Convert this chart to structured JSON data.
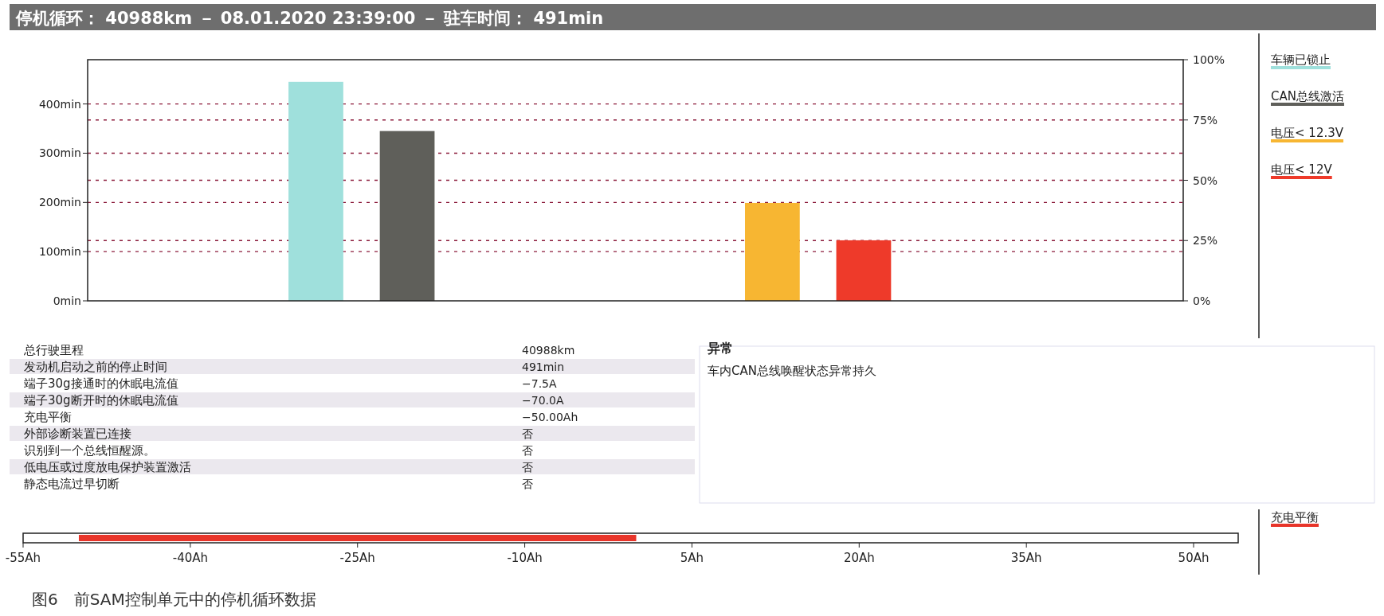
{
  "chart_data": [
    {
      "type": "bar",
      "title": "停机循环： 40988km － 08.01.2020 23:39:00 － 驻车时间： 491min",
      "categories": [
        null,
        null,
        null,
        null,
        null,
        null,
        null,
        null,
        null,
        null,
        null,
        null
      ],
      "series": [
        {
          "name": "车辆已锁止",
          "color": "#9fe0dc",
          "values": [
            null,
            null,
            445,
            null,
            null,
            null,
            null,
            null,
            null,
            null,
            null,
            null
          ]
        },
        {
          "name": "CAN总线激活",
          "color": "#5f5f5a",
          "values": [
            null,
            null,
            null,
            345,
            null,
            null,
            null,
            null,
            null,
            null,
            null,
            null
          ]
        },
        {
          "name": "电压< 12.3V",
          "color": "#f7b632",
          "values": [
            null,
            null,
            null,
            null,
            null,
            null,
            null,
            199,
            null,
            null,
            null,
            null
          ]
        },
        {
          "name": "电压< 12V",
          "color": "#ee3a2a",
          "values": [
            null,
            null,
            null,
            null,
            null,
            null,
            null,
            null,
            123,
            null,
            null,
            null
          ]
        }
      ],
      "ylim": [
        0,
        490
      ],
      "yticks": [
        {
          "value": 0,
          "label": "0min"
        },
        {
          "value": 100,
          "label": "100min"
        },
        {
          "value": 200,
          "label": "200min"
        },
        {
          "value": 300,
          "label": "300min"
        },
        {
          "value": 400,
          "label": "400min"
        }
      ],
      "y2lim": [
        0,
        100
      ],
      "y2ticks": [
        {
          "value": 0,
          "label": "0%"
        },
        {
          "value": 25,
          "label": "25%"
        },
        {
          "value": 50,
          "label": "50%"
        },
        {
          "value": 75,
          "label": "75%"
        },
        {
          "value": 100,
          "label": "100%"
        }
      ],
      "grid": true,
      "legend": "right"
    },
    {
      "type": "other",
      "categories": [
        "总行驶里程",
        "发动机启动之前的停止时间",
        "端子30g接通时的休眠电流值",
        "端子30g断开时的休眠电流值",
        "充电平衡",
        "外部诊断装置已连接",
        "识别到一个总线恒醒源。",
        "低电压或过度放电保护装置激活",
        "静态电流过早切断"
      ],
      "value_labels": [
        "40988km",
        "491min",
        "−7.5A",
        "−70.0A",
        "−50.00Ah",
        "否",
        "否",
        "否",
        "否"
      ],
      "annotations": [
        "异常",
        "车内CAN总线唤醒状态异常持久"
      ]
    },
    {
      "type": "bar",
      "orientation": "horizontal",
      "categories": [
        null
      ],
      "series": [
        {
          "name": "充电平衡",
          "color": "#e8352a",
          "values": [
            -50
          ]
        }
      ],
      "xlim": [
        -55,
        54
      ],
      "xticks": [
        {
          "value": -55,
          "label": "-55Ah"
        },
        {
          "value": -40,
          "label": "-40Ah"
        },
        {
          "value": -25,
          "label": "-25Ah"
        },
        {
          "value": -10,
          "label": "-10Ah"
        },
        {
          "value": 5,
          "label": "5Ah"
        },
        {
          "value": 20,
          "label": "20Ah"
        },
        {
          "value": 35,
          "label": "35Ah"
        },
        {
          "value": 50,
          "label": "50Ah"
        }
      ],
      "tick_labels": "x",
      "legend": "right",
      "annotations": [
        "图6　前SAM控制单元中的停机循环数据"
      ]
    }
  ]
}
